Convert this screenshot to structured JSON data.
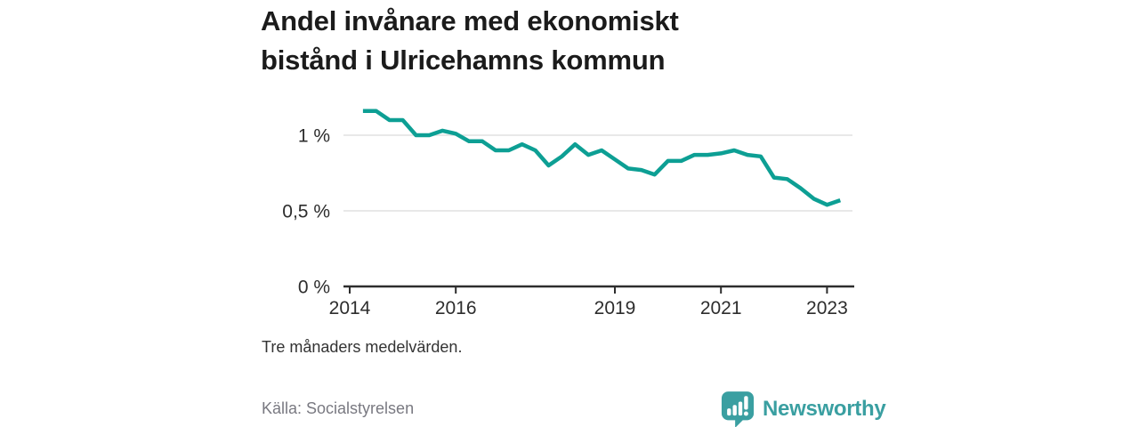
{
  "title": {
    "line1": "Andel invånare med ekonomiskt",
    "line2": "bistånd i Ulricehamns kommun"
  },
  "footnote": "Tre månaders medelvärden.",
  "source": "Källa: Socialstyrelsen",
  "brand": {
    "name": "Newsworthy",
    "icon": "speech-bubble-bar-chart-exclamation",
    "color": "#3a9fa1"
  },
  "colors": {
    "line": "#0d9f94",
    "grid": "#e1e1e1",
    "axis": "#2d2d2d",
    "title_text": "#1b1b1b",
    "muted_text": "#797981"
  },
  "chart_data": {
    "type": "line",
    "title": "Andel invånare med ekonomiskt bistånd i Ulricehamns kommun",
    "xlabel": "",
    "ylabel": "",
    "unit": "%",
    "note": "Tre månaders medelvärden.",
    "grid": "horizontal-only",
    "legend": "none",
    "xlim": [
      2013.85,
      2023.5
    ],
    "ylim": [
      0,
      1.24
    ],
    "x_ticks": [
      {
        "value": 2014,
        "label": "2014"
      },
      {
        "value": 2016,
        "label": "2016"
      },
      {
        "value": 2019,
        "label": "2019"
      },
      {
        "value": 2021,
        "label": "2021"
      },
      {
        "value": 2023,
        "label": "2023"
      }
    ],
    "y_ticks": [
      {
        "value": 0,
        "label": "0 %"
      },
      {
        "value": 0.5,
        "label": "0,5 %"
      },
      {
        "value": 1,
        "label": "1 %"
      }
    ],
    "series": [
      {
        "name": "Andel invånare med ekonomiskt bistånd, tre månaders medelvärden (%)",
        "x": [
          2014.25,
          2014.5,
          2014.75,
          2015.0,
          2015.25,
          2015.5,
          2015.75,
          2016.0,
          2016.25,
          2016.5,
          2016.75,
          2017.0,
          2017.25,
          2017.5,
          2017.75,
          2018.0,
          2018.25,
          2018.5,
          2018.75,
          2019.0,
          2019.25,
          2019.5,
          2019.75,
          2020.0,
          2020.25,
          2020.5,
          2020.75,
          2021.0,
          2021.25,
          2021.5,
          2021.75,
          2022.0,
          2022.25,
          2022.5,
          2022.75,
          2023.0,
          2023.25
        ],
        "values": [
          1.16,
          1.16,
          1.1,
          1.1,
          1.0,
          1.0,
          1.03,
          1.01,
          0.96,
          0.96,
          0.9,
          0.9,
          0.94,
          0.9,
          0.8,
          0.86,
          0.94,
          0.87,
          0.9,
          0.84,
          0.78,
          0.77,
          0.74,
          0.83,
          0.83,
          0.87,
          0.87,
          0.88,
          0.9,
          0.87,
          0.86,
          0.72,
          0.71,
          0.65,
          0.58,
          0.54,
          0.57
        ]
      }
    ]
  }
}
